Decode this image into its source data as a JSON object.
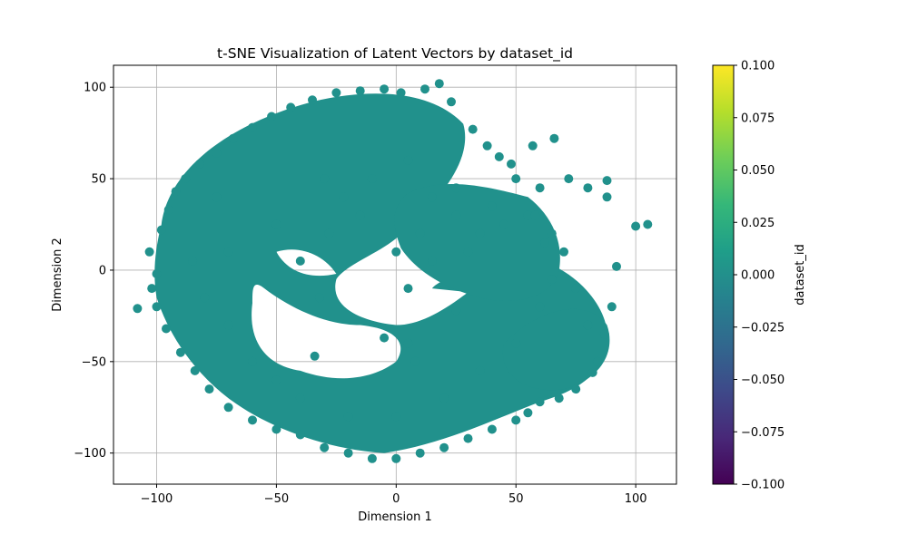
{
  "chart_data": {
    "type": "scatter",
    "title": "t-SNE Visualization of Latent Vectors by dataset_id",
    "xlabel": "Dimension 1",
    "ylabel": "Dimension 2",
    "xlim": [
      -118,
      117
    ],
    "ylim": [
      -117,
      112
    ],
    "xticks": [
      -100,
      -50,
      0,
      50,
      100
    ],
    "xtick_labels": [
      "−100",
      "−50",
      "0",
      "50",
      "100"
    ],
    "yticks": [
      -100,
      -50,
      0,
      50,
      100
    ],
    "ytick_labels": [
      "−100",
      "−50",
      "0",
      "50",
      "100"
    ],
    "grid": true,
    "point_color": "#21918c",
    "colorbar": {
      "label": "dataset_id",
      "colormap": "viridis",
      "range": [
        -0.1,
        0.1
      ],
      "ticks": [
        -0.1,
        -0.075,
        -0.05,
        -0.025,
        0.0,
        0.025,
        0.05,
        0.075,
        0.1
      ],
      "tick_labels": [
        "−0.100",
        "−0.075",
        "−0.050",
        "−0.025",
        "0.000",
        "0.025",
        "0.050",
        "0.075",
        "0.100"
      ],
      "gradient": [
        "#440154",
        "#482878",
        "#3e4989",
        "#31688e",
        "#26828e",
        "#1f9e89",
        "#35b779",
        "#6ece58",
        "#b5de2b",
        "#fde725"
      ]
    },
    "points": [
      [
        -108,
        -21
      ],
      [
        -102,
        -10
      ],
      [
        -100,
        -2
      ],
      [
        -103,
        10
      ],
      [
        -98,
        22
      ],
      [
        -95,
        33
      ],
      [
        -92,
        43
      ],
      [
        -88,
        50
      ],
      [
        -82,
        58
      ],
      [
        -75,
        64
      ],
      [
        -68,
        72
      ],
      [
        -60,
        78
      ],
      [
        -52,
        84
      ],
      [
        -44,
        89
      ],
      [
        -35,
        93
      ],
      [
        -25,
        97
      ],
      [
        -15,
        98
      ],
      [
        -5,
        99
      ],
      [
        2,
        97
      ],
      [
        12,
        99
      ],
      [
        18,
        102
      ],
      [
        23,
        92
      ],
      [
        32,
        77
      ],
      [
        38,
        68
      ],
      [
        43,
        62
      ],
      [
        48,
        58
      ],
      [
        57,
        68
      ],
      [
        66,
        72
      ],
      [
        72,
        50
      ],
      [
        80,
        45
      ],
      [
        88,
        40
      ],
      [
        88,
        49
      ],
      [
        100,
        24
      ],
      [
        105,
        25
      ],
      [
        92,
        2
      ],
      [
        90,
        -20
      ],
      [
        87,
        -35
      ],
      [
        84,
        -50
      ],
      [
        82,
        -56
      ],
      [
        75,
        -65
      ],
      [
        68,
        -70
      ],
      [
        60,
        -72
      ],
      [
        55,
        -78
      ],
      [
        50,
        -82
      ],
      [
        40,
        -87
      ],
      [
        30,
        -92
      ],
      [
        20,
        -97
      ],
      [
        10,
        -100
      ],
      [
        0,
        -103
      ],
      [
        -10,
        -103
      ],
      [
        -20,
        -100
      ],
      [
        -30,
        -97
      ],
      [
        -40,
        -90
      ],
      [
        -50,
        -87
      ],
      [
        -60,
        -82
      ],
      [
        -70,
        -75
      ],
      [
        -78,
        -65
      ],
      [
        -84,
        -55
      ],
      [
        -90,
        -45
      ],
      [
        -96,
        -32
      ],
      [
        -100,
        -20
      ],
      [
        -5,
        -37
      ],
      [
        -32,
        -15
      ],
      [
        -34,
        -47
      ],
      [
        5,
        -40
      ],
      [
        8,
        -50
      ],
      [
        25,
        -22
      ],
      [
        -40,
        5
      ],
      [
        -28,
        20
      ],
      [
        -15,
        30
      ],
      [
        -10,
        50
      ],
      [
        5,
        60
      ],
      [
        -30,
        50
      ],
      [
        -22,
        40
      ],
      [
        -50,
        25
      ],
      [
        -75,
        40
      ],
      [
        -70,
        10
      ],
      [
        -85,
        5
      ],
      [
        -80,
        -15
      ],
      [
        -70,
        -30
      ],
      [
        -60,
        -50
      ],
      [
        -50,
        -60
      ],
      [
        -40,
        -70
      ],
      [
        -20,
        -80
      ],
      [
        0,
        -80
      ],
      [
        20,
        -70
      ],
      [
        35,
        -55
      ],
      [
        50,
        -40
      ],
      [
        60,
        -20
      ],
      [
        65,
        -5
      ],
      [
        70,
        10
      ],
      [
        75,
        -10
      ],
      [
        65,
        20
      ],
      [
        55,
        30
      ],
      [
        45,
        25
      ],
      [
        35,
        20
      ],
      [
        25,
        30
      ],
      [
        15,
        40
      ],
      [
        25,
        45
      ],
      [
        30,
        10
      ],
      [
        15,
        5
      ],
      [
        5,
        -10
      ],
      [
        0,
        10
      ],
      [
        10,
        20
      ],
      [
        40,
        35
      ],
      [
        50,
        50
      ],
      [
        60,
        45
      ],
      [
        58,
        30
      ],
      [
        62,
        15
      ],
      [
        80,
        -30
      ]
    ]
  }
}
